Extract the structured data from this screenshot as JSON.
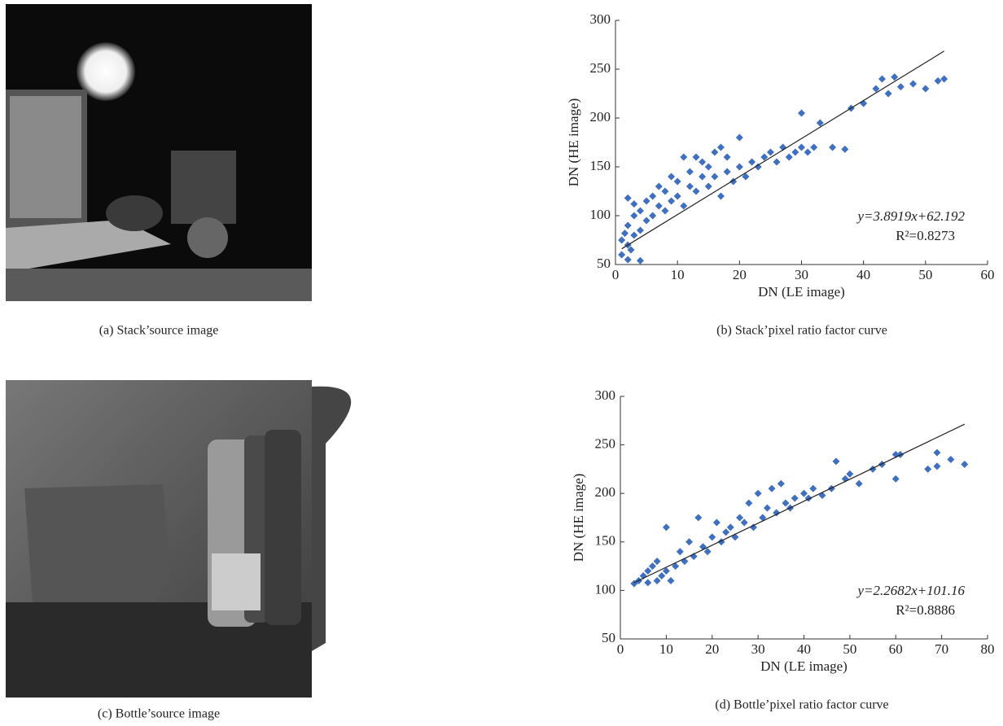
{
  "images": [
    {
      "caption": "(a) Stack’source image"
    },
    {
      "caption": "(c) Bottle’source image"
    }
  ],
  "chart_data": [
    {
      "type": "scatter",
      "caption": "(b) Stack’pixel ratio factor curve",
      "x_label": "DN (LE image)",
      "y_label": "DN (HE image)",
      "equation_label": "y=3.8919x+62.192",
      "r2_label": "R²=0.8273",
      "color": "#3f6fbf",
      "marker": "diamond",
      "xlim": [
        0,
        60
      ],
      "xticks": [
        0,
        10,
        20,
        30,
        40,
        50,
        60
      ],
      "ylim": [
        50,
        300
      ],
      "yticks": [
        50,
        100,
        150,
        200,
        250,
        300
      ],
      "trendline": {
        "x": [
          1,
          53
        ],
        "y": [
          66.1,
          268.5
        ]
      },
      "x": [
        1,
        1,
        1.5,
        2,
        2,
        2,
        2,
        2.5,
        3,
        3,
        3,
        4,
        4,
        4,
        5,
        5,
        6,
        6,
        7,
        7,
        8,
        8,
        9,
        9,
        10,
        10,
        11,
        11,
        12,
        12,
        13,
        13,
        14,
        14,
        15,
        15,
        16,
        16,
        17,
        17,
        18,
        18,
        19,
        20,
        20,
        21,
        22,
        23,
        24,
        25,
        26,
        27,
        28,
        29,
        30,
        30,
        31,
        32,
        33,
        35,
        37,
        38,
        40,
        42,
        43,
        44,
        45,
        46,
        48,
        50,
        52,
        53
      ],
      "y": [
        60,
        75,
        82,
        55,
        70,
        90,
        118,
        65,
        80,
        100,
        112,
        54,
        85,
        105,
        95,
        115,
        100,
        120,
        110,
        130,
        105,
        125,
        115,
        140,
        120,
        135,
        110,
        160,
        130,
        145,
        125,
        160,
        140,
        155,
        130,
        150,
        165,
        140,
        120,
        170,
        145,
        160,
        135,
        150,
        180,
        140,
        155,
        150,
        160,
        165,
        155,
        170,
        160,
        165,
        170,
        205,
        165,
        170,
        195,
        170,
        168,
        210,
        215,
        230,
        240,
        225,
        242,
        232,
        235,
        230,
        238,
        240
      ]
    },
    {
      "type": "scatter",
      "caption": "(d) Bottle’pixel ratio factor curve",
      "x_label": "DN (LE image)",
      "y_label": "DN (HE image)",
      "equation_label": "y=2.2682x+101.16",
      "r2_label": "R²=0.8886",
      "color": "#3f6fbf",
      "marker": "diamond",
      "xlim": [
        0,
        80
      ],
      "xticks": [
        0,
        10,
        20,
        30,
        40,
        50,
        60,
        70,
        80
      ],
      "ylim": [
        50,
        300
      ],
      "yticks": [
        50,
        100,
        150,
        200,
        250,
        300
      ],
      "trendline": {
        "x": [
          3,
          75
        ],
        "y": [
          108,
          271.3
        ]
      },
      "x": [
        3,
        4,
        5,
        6,
        6,
        7,
        8,
        8,
        9,
        10,
        10,
        11,
        12,
        13,
        14,
        15,
        16,
        17,
        18,
        19,
        20,
        21,
        22,
        23,
        24,
        25,
        26,
        27,
        28,
        29,
        30,
        31,
        32,
        33,
        34,
        35,
        36,
        37,
        38,
        40,
        41,
        42,
        44,
        46,
        47,
        49,
        50,
        52,
        55,
        57,
        60,
        60,
        61,
        67,
        69,
        69,
        72,
        75
      ],
      "y": [
        107,
        110,
        115,
        108,
        120,
        125,
        110,
        130,
        115,
        120,
        165,
        110,
        125,
        140,
        130,
        150,
        135,
        175,
        145,
        140,
        155,
        170,
        150,
        160,
        165,
        155,
        175,
        170,
        190,
        165,
        200,
        175,
        185,
        205,
        180,
        210,
        190,
        185,
        195,
        200,
        195,
        205,
        198,
        205,
        233,
        215,
        220,
        210,
        225,
        230,
        215,
        240,
        240,
        225,
        242,
        228,
        235,
        230
      ]
    }
  ]
}
